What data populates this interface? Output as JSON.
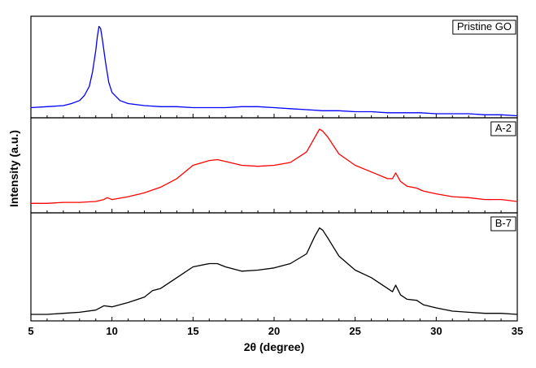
{
  "chart_data": {
    "type": "line",
    "xlabel": "2θ (degree)",
    "ylabel": "Intensity (a.u.)",
    "xlim": [
      5,
      35
    ],
    "x_ticks": [
      5,
      10,
      15,
      20,
      25,
      30,
      35
    ],
    "grid": false,
    "stacked_panels": true,
    "y_unit": "arbitrary (normalized within each panel, 0-1)",
    "series": [
      {
        "name": "Pristine GO",
        "color": "#0000ff",
        "x": [
          5,
          6,
          7,
          7.5,
          8,
          8.3,
          8.6,
          8.8,
          9.0,
          9.1,
          9.2,
          9.3,
          9.4,
          9.6,
          9.8,
          10,
          10.5,
          11,
          12,
          13,
          14,
          15,
          16,
          17,
          18,
          19,
          20,
          21,
          22,
          23,
          24,
          25,
          26,
          27,
          28,
          29,
          30,
          31,
          32,
          33,
          34,
          35
        ],
        "y": [
          0.1,
          0.11,
          0.12,
          0.14,
          0.17,
          0.22,
          0.31,
          0.45,
          0.66,
          0.8,
          0.9,
          0.88,
          0.78,
          0.55,
          0.35,
          0.25,
          0.17,
          0.14,
          0.12,
          0.11,
          0.11,
          0.1,
          0.1,
          0.1,
          0.11,
          0.11,
          0.1,
          0.09,
          0.08,
          0.07,
          0.07,
          0.06,
          0.06,
          0.05,
          0.05,
          0.05,
          0.04,
          0.04,
          0.04,
          0.03,
          0.03,
          0.02
        ]
      },
      {
        "name": "A-2",
        "color": "#ff0000",
        "x": [
          5,
          6,
          7,
          8,
          9,
          9.5,
          9.7,
          10,
          11,
          12,
          13,
          14,
          15,
          16,
          16.5,
          17,
          18,
          19,
          20,
          21,
          22,
          22.5,
          22.8,
          23,
          23.3,
          24,
          25,
          26,
          27,
          27.3,
          27.5,
          27.8,
          28.2,
          28.8,
          29.2,
          30,
          31,
          32,
          33,
          34,
          35
        ],
        "y": [
          0.1,
          0.1,
          0.11,
          0.11,
          0.12,
          0.14,
          0.16,
          0.14,
          0.17,
          0.21,
          0.27,
          0.36,
          0.5,
          0.55,
          0.56,
          0.54,
          0.5,
          0.49,
          0.5,
          0.53,
          0.64,
          0.79,
          0.88,
          0.86,
          0.8,
          0.62,
          0.5,
          0.43,
          0.36,
          0.36,
          0.42,
          0.33,
          0.28,
          0.26,
          0.23,
          0.2,
          0.17,
          0.16,
          0.14,
          0.14,
          0.12
        ]
      },
      {
        "name": "B-7",
        "color": "#000000",
        "x": [
          5,
          6,
          7,
          8,
          9,
          9.5,
          10,
          11,
          12,
          12.5,
          13,
          14,
          15,
          16,
          16.5,
          17,
          18,
          19,
          20,
          21,
          22,
          22.5,
          22.8,
          23,
          23.3,
          24,
          25,
          26,
          27,
          27.3,
          27.5,
          27.8,
          28.2,
          28.8,
          29.2,
          30,
          31,
          32,
          33,
          34,
          35
        ],
        "y": [
          0.06,
          0.06,
          0.07,
          0.08,
          0.1,
          0.14,
          0.13,
          0.17,
          0.22,
          0.28,
          0.3,
          0.4,
          0.5,
          0.53,
          0.53,
          0.5,
          0.46,
          0.47,
          0.49,
          0.53,
          0.62,
          0.78,
          0.86,
          0.84,
          0.77,
          0.6,
          0.47,
          0.4,
          0.3,
          0.27,
          0.33,
          0.24,
          0.2,
          0.19,
          0.15,
          0.12,
          0.09,
          0.08,
          0.07,
          0.07,
          0.06
        ]
      }
    ]
  }
}
